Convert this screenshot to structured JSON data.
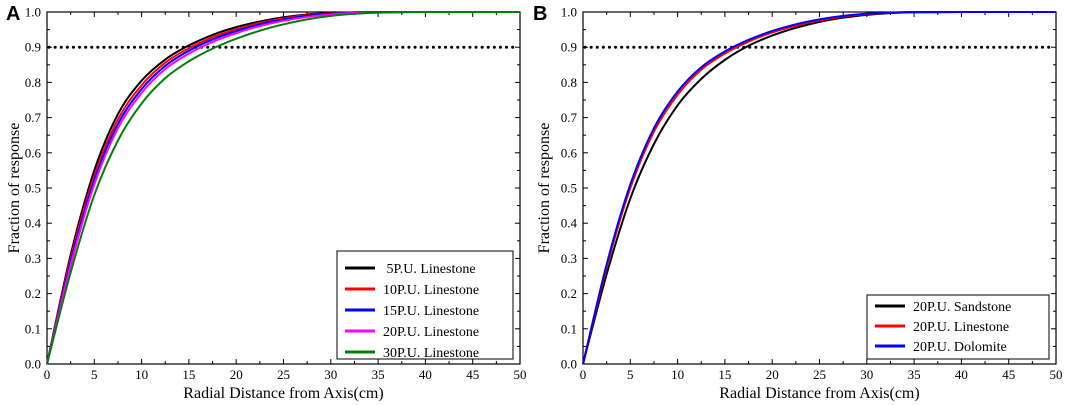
{
  "chart_data": [
    {
      "panel": "A",
      "type": "line",
      "xlabel": "Radial Distance from Axis(cm)",
      "ylabel": "Fraction of response",
      "xlim": [
        0,
        50
      ],
      "ylim": [
        0,
        1.0
      ],
      "xticks": [
        0,
        5,
        10,
        15,
        20,
        25,
        30,
        35,
        40,
        45,
        50
      ],
      "yticks": [
        "0.0",
        "0.1",
        "0.2",
        "0.3",
        "0.4",
        "0.5",
        "0.6",
        "0.7",
        "0.8",
        "0.9",
        "1.0"
      ],
      "reference_line": {
        "y": 0.9,
        "style": "dotted"
      },
      "legend_position": "bottom-right",
      "x": [
        0,
        2.5,
        5,
        7.5,
        10,
        12.5,
        15,
        17.5,
        20,
        22.5,
        25,
        27.5,
        30,
        32.5,
        35,
        40,
        45,
        50
      ],
      "series": [
        {
          "name": " 5P.U. Linestone",
          "color": "#000000",
          "values": [
            0,
            0.31,
            0.55,
            0.71,
            0.805,
            0.865,
            0.905,
            0.935,
            0.957,
            0.973,
            0.985,
            0.993,
            0.997,
            0.999,
            1.0,
            1.0,
            1.0,
            1.0
          ]
        },
        {
          "name": "10P.U. Linestone",
          "color": "#ff0000",
          "values": [
            0,
            0.3,
            0.535,
            0.695,
            0.792,
            0.856,
            0.897,
            0.928,
            0.951,
            0.969,
            0.982,
            0.991,
            0.996,
            0.999,
            1.0,
            1.0,
            1.0,
            1.0
          ]
        },
        {
          "name": "15P.U. Linestone",
          "color": "#0000ff",
          "values": [
            0,
            0.29,
            0.522,
            0.682,
            0.781,
            0.847,
            0.89,
            0.922,
            0.946,
            0.965,
            0.979,
            0.989,
            0.995,
            0.998,
            1.0,
            1.0,
            1.0,
            1.0
          ]
        },
        {
          "name": "20P.U. Linestone",
          "color": "#ff00ff",
          "values": [
            0,
            0.28,
            0.51,
            0.67,
            0.77,
            0.838,
            0.882,
            0.915,
            0.94,
            0.96,
            0.975,
            0.986,
            0.993,
            0.997,
            0.999,
            1.0,
            1.0,
            1.0
          ]
        },
        {
          "name": "30P.U. Linestone",
          "color": "#008000",
          "values": [
            0,
            0.26,
            0.48,
            0.635,
            0.74,
            0.812,
            0.86,
            0.896,
            0.924,
            0.947,
            0.965,
            0.979,
            0.989,
            0.995,
            0.998,
            1.0,
            1.0,
            1.0
          ]
        }
      ]
    },
    {
      "panel": "B",
      "type": "line",
      "xlabel": "Radial Distance from Axis(cm)",
      "ylabel": "Fraction of response",
      "xlim": [
        0,
        50
      ],
      "ylim": [
        0,
        1.0
      ],
      "xticks": [
        0,
        5,
        10,
        15,
        20,
        25,
        30,
        35,
        40,
        45,
        50
      ],
      "yticks": [
        "0.0",
        "0.1",
        "0.2",
        "0.3",
        "0.4",
        "0.5",
        "0.6",
        "0.7",
        "0.8",
        "0.9",
        "1.0"
      ],
      "reference_line": {
        "y": 0.9,
        "style": "dotted"
      },
      "legend_position": "bottom-right",
      "x": [
        0,
        2.5,
        5,
        7.5,
        10,
        12.5,
        15,
        17.5,
        20,
        22.5,
        25,
        27.5,
        30,
        32.5,
        35,
        40,
        45,
        50
      ],
      "series": [
        {
          "name": "20P.U. Sandstone",
          "color": "#000000",
          "values": [
            0,
            0.255,
            0.47,
            0.625,
            0.735,
            0.81,
            0.864,
            0.904,
            0.933,
            0.955,
            0.972,
            0.984,
            0.992,
            0.997,
            0.999,
            1.0,
            1.0,
            1.0
          ]
        },
        {
          "name": "20P.U. Linestone",
          "color": "#ff0000",
          "values": [
            0,
            0.275,
            0.5,
            0.66,
            0.765,
            0.836,
            0.882,
            0.916,
            0.942,
            0.961,
            0.976,
            0.987,
            0.994,
            0.998,
            0.999,
            1.0,
            1.0,
            1.0
          ]
        },
        {
          "name": "20P.U. Dolomite",
          "color": "#0000ff",
          "values": [
            0,
            0.283,
            0.51,
            0.67,
            0.774,
            0.843,
            0.888,
            0.921,
            0.946,
            0.965,
            0.979,
            0.989,
            0.995,
            0.998,
            1.0,
            1.0,
            1.0,
            1.0
          ]
        }
      ]
    }
  ]
}
